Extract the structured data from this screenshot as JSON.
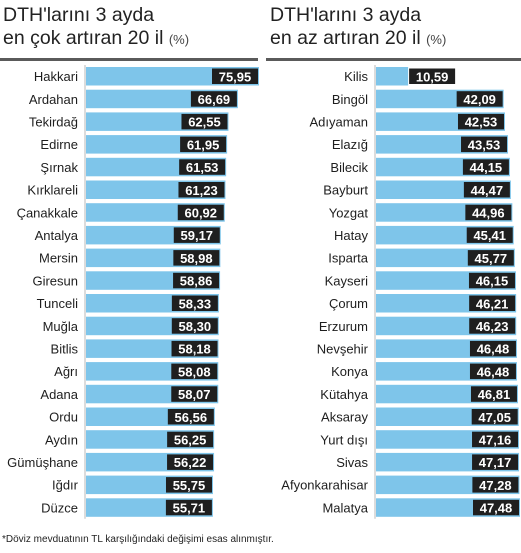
{
  "colors": {
    "bar": "#7ec5ea",
    "label_box": "#1f1f1f",
    "label_text": "#ffffff",
    "axis": "#b8b8b8"
  },
  "left_panel": {
    "title_line1": "DTH'larını 3 ayda",
    "title_line2": "en çok artıran 20 il",
    "unit": "(%)"
  },
  "right_panel": {
    "title_line1": "DTH'larını 3 ayda",
    "title_line2": "en az artıran 20 il",
    "unit": "(%)"
  },
  "footnote": "*Döviz mevduatının TL karşılığındaki değişimi esas alınmıştır.",
  "chart_data": [
    {
      "type": "bar",
      "orientation": "horizontal",
      "categories": [
        "Hakkari",
        "Ardahan",
        "Tekirdağ",
        "Edirne",
        "Şırnak",
        "Kırklareli",
        "Çanakkale",
        "Antalya",
        "Mersin",
        "Giresun",
        "Tunceli",
        "Muğla",
        "Bitlis",
        "Ağrı",
        "Adana",
        "Ordu",
        "Aydın",
        "Gümüşhane",
        "Iğdır",
        "Düzce"
      ],
      "values": [
        75.95,
        66.69,
        62.55,
        61.95,
        61.53,
        61.23,
        60.92,
        59.17,
        58.98,
        58.86,
        58.33,
        58.3,
        58.18,
        58.08,
        58.07,
        56.56,
        56.25,
        56.22,
        55.75,
        55.71
      ],
      "labels": [
        "75,95",
        "66,69",
        "62,55",
        "61,95",
        "61,53",
        "61,23",
        "60,92",
        "59,17",
        "58,98",
        "58,86",
        "58,33",
        "58,30",
        "58,18",
        "58,08",
        "58,07",
        "56,56",
        "56,25",
        "56,22",
        "55,75",
        "55,71"
      ],
      "xlim": [
        0,
        75.95
      ]
    },
    {
      "type": "bar",
      "orientation": "horizontal",
      "categories": [
        "Kilis",
        "Bingöl",
        "Adıyaman",
        "Elazığ",
        "Bilecik",
        "Bayburt",
        "Yozgat",
        "Hatay",
        "Isparta",
        "Kayseri",
        "Çorum",
        "Erzurum",
        "Nevşehir",
        "Konya",
        "Kütahya",
        "Aksaray",
        "Yurt dışı",
        "Sivas",
        "Afyonkarahisar",
        "Malatya"
      ],
      "values": [
        10.59,
        42.09,
        42.53,
        43.53,
        44.15,
        44.47,
        44.96,
        45.41,
        45.77,
        46.15,
        46.21,
        46.23,
        46.48,
        46.48,
        46.81,
        47.05,
        47.16,
        47.17,
        47.28,
        47.48
      ],
      "labels": [
        "10,59",
        "42,09",
        "42,53",
        "43,53",
        "44,15",
        "44,47",
        "44,96",
        "45,41",
        "45,77",
        "46,15",
        "46,21",
        "46,23",
        "46,48",
        "46,48",
        "46,81",
        "47,05",
        "47,16",
        "47,17",
        "47,28",
        "47,48"
      ],
      "xlim": [
        0,
        47.48
      ]
    }
  ]
}
